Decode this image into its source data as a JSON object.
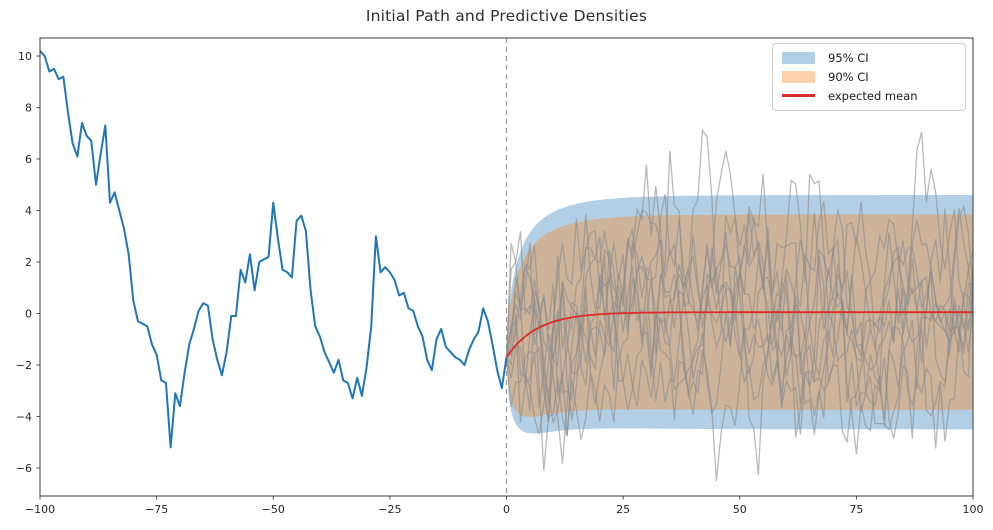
{
  "chart_data": {
    "type": "line",
    "title": "Initial Path and Predictive Densities",
    "xlim": [
      -100,
      100
    ],
    "ylim": [
      -7.09,
      10.7
    ],
    "xticks": [
      -100,
      -75,
      -50,
      -25,
      0,
      25,
      50,
      75,
      100
    ],
    "yticks": [
      -6,
      -4,
      -2,
      0,
      2,
      4,
      6,
      8,
      10
    ],
    "grid": false,
    "vline_x": 0,
    "vline_color": "#9a9a9a",
    "axis": {
      "spine_color": "#3b3b3b",
      "tick_color": "#3b3b3b",
      "label_color": "#262626"
    },
    "legend": [
      {
        "label": "95% CI",
        "kind": "patch",
        "swatch": "#b1cfe5"
      },
      {
        "label": "90% CI",
        "kind": "patch",
        "swatch": "#ffd2ab"
      },
      {
        "label": "expected mean",
        "kind": "line",
        "swatch": "#dd2c2c"
      }
    ],
    "historical_path": {
      "name": "initial path",
      "color": "#1f77b4",
      "x_start": -100,
      "x_step": 1,
      "values": [
        10.2,
        10.0,
        9.4,
        9.5,
        9.1,
        9.2,
        7.8,
        6.6,
        6.1,
        7.4,
        6.9,
        6.7,
        5.0,
        6.2,
        7.3,
        4.3,
        4.7,
        4.0,
        3.3,
        2.3,
        0.5,
        -0.3,
        -0.4,
        -0.5,
        -1.2,
        -1.6,
        -2.6,
        -2.7,
        -5.2,
        -3.1,
        -3.6,
        -2.3,
        -1.2,
        -0.6,
        0.1,
        0.4,
        0.3,
        -1.0,
        -1.8,
        -2.4,
        -1.5,
        -0.1,
        -0.1,
        1.7,
        1.2,
        2.3,
        0.9,
        2.0,
        2.1,
        2.2,
        4.3,
        2.9,
        1.7,
        1.6,
        1.4,
        3.6,
        3.8,
        3.2,
        0.9,
        -0.5,
        -0.9,
        -1.5,
        -1.9,
        -2.3,
        -1.8,
        -2.6,
        -2.7,
        -3.3,
        -2.5,
        -3.2,
        -2.1,
        -0.5,
        3.0,
        1.6,
        1.8,
        1.6,
        1.3,
        0.7,
        0.8,
        0.2,
        0.1,
        -0.5,
        -0.9,
        -1.8,
        -2.2,
        -1.0,
        -0.6,
        -1.3,
        -1.5,
        -1.7,
        -1.8,
        -2.0,
        -1.4,
        -1.0,
        -0.7,
        0.2,
        -0.3,
        -1.2,
        -2.2,
        -2.9,
        -1.7
      ]
    },
    "expected_mean": {
      "name": "expected mean",
      "color": "#dd2c2c",
      "x_range": [
        0,
        100
      ],
      "start_value": -1.7,
      "end_value": 0.05,
      "tau": 6.5
    },
    "bands": [
      {
        "name": "95% CI",
        "fill": "#b3cfe6",
        "plateau_halfwidth": 4.55
      },
      {
        "name": "90% CI",
        "fill": "#ccb39a",
        "plateau_halfwidth": 3.8
      }
    ],
    "band_shape": {
      "k1": 0.75,
      "tau1": 2.5,
      "k2": 0.25,
      "tau2": 12
    },
    "sample_paths": {
      "count": 10,
      "color": "#8a8a8a",
      "opacity": 0.6,
      "x_range": [
        0,
        100
      ],
      "start": -1.7,
      "target": 0.05,
      "theta": 0.25,
      "sigma": 1.45,
      "seed": 7
    }
  }
}
